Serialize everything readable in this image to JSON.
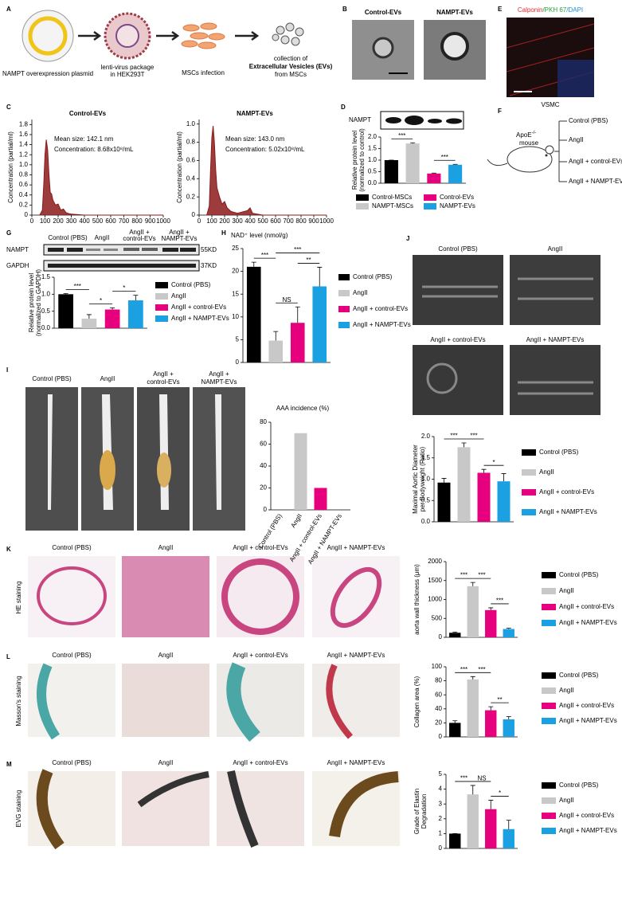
{
  "panels": {
    "a": {
      "label": "A",
      "plasmid": "NAMPT overexpression plasmid",
      "lentivirus": [
        "lenti-virus package",
        "in HEK293T"
      ],
      "infection": "MSCs infection",
      "collection": [
        "collection of",
        "Extracellular Vesicles (EVs)",
        "from MSCs"
      ]
    },
    "b": {
      "label": "B",
      "images": [
        "Control-EVs",
        "NAMPT-EVs"
      ]
    },
    "c": {
      "label": "C"
    },
    "d": {
      "label": "D",
      "blot": "NAMPT"
    },
    "e": {
      "label": "E",
      "stains": [
        {
          "text": "Calponin",
          "color": "#e8262b"
        },
        {
          "text": "/PKH 67",
          "color": "#22a33a"
        },
        {
          "text": "/DAPI",
          "color": "#1f8fd6"
        }
      ],
      "caption": "VSMC"
    },
    "f": {
      "label": "F",
      "mouse": "ApoE",
      "genotype": "-/-",
      "mouse_word": "mouse",
      "groups": [
        "Control (PBS)",
        "AngII",
        "AngII + control-EVs",
        "AngII + NAMPT-EVs"
      ]
    },
    "g": {
      "label": "G",
      "lanes": [
        "Control (PBS)",
        "AngII",
        [
          "AngII +",
          "control-EVs"
        ],
        [
          "AngII +",
          "NAMPT-EVs"
        ]
      ],
      "rows": [
        {
          "name": "NAMPT",
          "size": "55KD"
        },
        {
          "name": "GAPDH",
          "size": "37KD"
        }
      ]
    },
    "h": {
      "label": "H"
    },
    "i": {
      "label": "I",
      "photos": [
        "Control (PBS)",
        "AngII",
        [
          "AngII +",
          "control-EVs"
        ],
        [
          "AngII +",
          "NAMPT-EVs"
        ]
      ]
    },
    "j": {
      "label": "J",
      "images": [
        "Control (PBS)",
        "AngII",
        "AngII + control-EVs",
        "AngII + NAMPT-EVs"
      ]
    },
    "k": {
      "label": "K",
      "stain": "HE staining",
      "images": [
        "Control (PBS)",
        "AngII",
        "AngII + control-EVs",
        "AngII + NAMPT-EVs"
      ]
    },
    "l": {
      "label": "L",
      "stain": "Masson's staining",
      "images": [
        "Control (PBS)",
        "AngII",
        "AngII + control-EVs",
        "AngII + NAMPT-EVs"
      ]
    },
    "m": {
      "label": "M",
      "stain": "EVG staining",
      "images": [
        "Control (PBS)",
        "AngII",
        "AngII + control-EVs",
        "AngII + NAMPT-EVs"
      ]
    }
  },
  "chart_data": [
    {
      "type": "line",
      "title": "Control-EVs",
      "notes": [
        "Mean size: 142.1 nm",
        "Concentration:  8.68x10⁸/mL"
      ],
      "ylabel": "Concentration (partial/ml)",
      "color": "#8b1a1a",
      "x": [
        60,
        80,
        90,
        100,
        110,
        120,
        130,
        140,
        150,
        160,
        170,
        180,
        200,
        220,
        240,
        260,
        280,
        300,
        350,
        400,
        1000
      ],
      "values": [
        0,
        0.1,
        0.6,
        1.2,
        1.5,
        1.3,
        0.8,
        0.45,
        0.42,
        0.3,
        0.25,
        0.2,
        0.22,
        0.1,
        0.12,
        0.05,
        0.03,
        0.02,
        0.01,
        0,
        0
      ],
      "xlim": [
        0,
        1000
      ],
      "xticks": [
        0,
        100,
        200,
        300,
        400,
        500,
        600,
        700,
        800,
        900,
        1000
      ],
      "ylim": [
        0,
        1.9
      ],
      "yticks": [
        0,
        0.2,
        0.4,
        0.6,
        0.8,
        {
          "value": 1,
          "label": "1.0"
        },
        1.2,
        1.4,
        1.6,
        1.8
      ]
    },
    {
      "type": "line",
      "title": "NAMPT-EVs",
      "notes": [
        "Mean size: 143.0 nm",
        "Concentration:  5.02x10⁸/mL"
      ],
      "ylabel": "Concentration (partial/ml)",
      "color": "#8b1a1a",
      "x": [
        60,
        80,
        90,
        100,
        110,
        120,
        130,
        140,
        150,
        160,
        180,
        200,
        220,
        250,
        300,
        380,
        400,
        420,
        500,
        1000
      ],
      "values": [
        0,
        0.1,
        0.5,
        0.85,
        0.98,
        0.8,
        0.5,
        0.3,
        0.25,
        0.2,
        0.12,
        0.15,
        0.08,
        0.04,
        0.02,
        0.05,
        0.08,
        0.02,
        0,
        0
      ],
      "xlim": [
        0,
        1000
      ],
      "xticks": [
        0,
        100,
        200,
        300,
        400,
        500,
        600,
        700,
        800,
        900,
        1000
      ],
      "ylim": [
        0,
        1.05
      ],
      "yticks": [
        0,
        0.2,
        0.4,
        0.6,
        0.8,
        {
          "value": 1,
          "label": "1.0"
        }
      ]
    },
    {
      "type": "bar",
      "ylabel": [
        "Relative protein level",
        "(normalized to control)"
      ],
      "legend": "bottom",
      "categories": [
        "Control-MSCs",
        "NAMPT-MSCs",
        "Control-EVs",
        "NAMPT-EVs"
      ],
      "values": [
        1.0,
        1.72,
        0.42,
        0.8
      ],
      "errors": [
        0,
        0.03,
        0.02,
        0.02
      ],
      "colors": [
        "#000000",
        "#c8c8c8",
        "#e6007e",
        "#1ba1e2"
      ],
      "ylim": [
        0,
        2
      ],
      "yticks": [
        {
          "value": 0,
          "label": "0.0"
        },
        0.5,
        {
          "value": 1,
          "label": "1.0"
        },
        1.5,
        {
          "value": 2,
          "label": "2.0"
        }
      ],
      "annotations": [
        {
          "label": "***",
          "between": [
            0,
            1
          ]
        },
        {
          "label": "***",
          "between": [
            2,
            3
          ]
        }
      ]
    },
    {
      "type": "bar",
      "ylabel": [
        "Relative protein level",
        "(normalized to GAPDH)"
      ],
      "legend": "right",
      "categories": [
        "Control (PBS)",
        "AngII",
        "AngII + control-EVs",
        "AngII + NAMPT-EVs"
      ],
      "values": [
        1.0,
        0.28,
        0.55,
        0.82
      ],
      "errors": [
        0.02,
        0.12,
        0.05,
        0.15
      ],
      "colors": [
        "#000000",
        "#c8c8c8",
        "#e6007e",
        "#1ba1e2"
      ],
      "ylim": [
        0,
        1.5
      ],
      "yticks": [
        {
          "value": 0,
          "label": "0.0"
        },
        0.5,
        {
          "value": 1,
          "label": "1.0"
        },
        1.5
      ],
      "annotations": [
        {
          "label": "***",
          "between": [
            0,
            1
          ]
        },
        {
          "label": "*",
          "between": [
            1,
            2
          ]
        },
        {
          "label": "*",
          "between": [
            2,
            3
          ]
        }
      ]
    },
    {
      "type": "bar",
      "title": "NAD⁺ level (nmol/g)",
      "legend": "right",
      "categories": [
        "Control (PBS)",
        "AngII",
        "AngII + control-EVs",
        "AngII + NAMPT-EVs"
      ],
      "values": [
        21,
        4.8,
        8.7,
        16.7
      ],
      "errors": [
        1,
        2,
        3.5,
        4.2
      ],
      "colors": [
        "#000000",
        "#c8c8c8",
        "#e6007e",
        "#1ba1e2"
      ],
      "ylim": [
        0,
        25
      ],
      "yticks": [
        0,
        5,
        10,
        15,
        20,
        25
      ],
      "annotations": [
        {
          "label": "***",
          "between": [
            0,
            1
          ]
        },
        {
          "label": "NS",
          "between": [
            1,
            2
          ]
        },
        {
          "label": "**",
          "between": [
            2,
            3
          ]
        },
        {
          "label": "***",
          "between": [
            1,
            3
          ]
        }
      ]
    },
    {
      "type": "bar",
      "title": "AAA incidence (%)",
      "categories": [
        "Control (PBS)",
        "AngII",
        "AngII + control-EVs",
        "AngII + NAMPT-EVs"
      ],
      "values": [
        0,
        70,
        20,
        0
      ],
      "colors": [
        "#000000",
        "#c8c8c8",
        "#e6007e",
        "#1ba1e2"
      ],
      "ylim": [
        0,
        80
      ],
      "yticks": [
        0,
        20,
        40,
        60,
        80
      ]
    },
    {
      "type": "bar",
      "ylabel": [
        "Maximal Aortic Diameter",
        "per Bodyweight (Ratio)"
      ],
      "legend": "right",
      "categories": [
        "Control (PBS)",
        "AngII",
        "AngII + control-EVs",
        "AngII + NAMPT-EVs"
      ],
      "values": [
        0.92,
        1.75,
        1.15,
        0.95
      ],
      "errors": [
        0.1,
        0.1,
        0.08,
        0.18
      ],
      "colors": [
        "#000000",
        "#c8c8c8",
        "#e6007e",
        "#1ba1e2"
      ],
      "ylim": [
        0,
        2
      ],
      "yticks": [
        {
          "value": 0,
          "label": "0.0"
        },
        0.5,
        {
          "value": 1,
          "label": "1.0"
        },
        1.5,
        {
          "value": 2,
          "label": "2.0"
        }
      ],
      "annotations": [
        {
          "label": "***",
          "between": [
            0,
            1
          ]
        },
        {
          "label": "***",
          "between": [
            1,
            2
          ]
        },
        {
          "label": "*",
          "between": [
            2,
            3
          ]
        }
      ]
    },
    {
      "type": "bar",
      "ylabel": "aorta wall thickness (μm)",
      "legend": "right",
      "categories": [
        "Control (PBS)",
        "AngII",
        "AngII + control-EVs",
        "AngII + NAMPT-EVs"
      ],
      "values": [
        120,
        1350,
        720,
        220
      ],
      "errors": [
        20,
        100,
        60,
        20
      ],
      "colors": [
        "#000000",
        "#c8c8c8",
        "#e6007e",
        "#1ba1e2"
      ],
      "ylim": [
        0,
        2000
      ],
      "yticks": [
        0,
        500,
        1000,
        1500,
        2000
      ],
      "annotations": [
        {
          "label": "***",
          "between": [
            0,
            1
          ]
        },
        {
          "label": "***",
          "between": [
            1,
            2
          ]
        },
        {
          "label": "***",
          "between": [
            2,
            3
          ]
        }
      ]
    },
    {
      "type": "bar",
      "ylabel": "Collagen area (%)",
      "legend": "right",
      "categories": [
        "Control (PBS)",
        "AngII",
        "AngII + control-EVs",
        "AngII + NAMPT-EVs"
      ],
      "values": [
        20,
        82,
        38,
        25
      ],
      "errors": [
        3,
        4,
        5,
        4
      ],
      "colors": [
        "#000000",
        "#c8c8c8",
        "#e6007e",
        "#1ba1e2"
      ],
      "ylim": [
        0,
        100
      ],
      "yticks": [
        0,
        20,
        40,
        60,
        80,
        100
      ],
      "annotations": [
        {
          "label": "***",
          "between": [
            0,
            1
          ]
        },
        {
          "label": "***",
          "between": [
            1,
            2
          ]
        },
        {
          "label": "**",
          "between": [
            2,
            3
          ]
        }
      ]
    },
    {
      "type": "bar",
      "ylabel": [
        "Grade of Elastin",
        "Degradation"
      ],
      "legend": "right",
      "categories": [
        "Control (PBS)",
        "AngII",
        "AngII + control-EVs",
        "AngII + NAMPT-EVs"
      ],
      "values": [
        1,
        3.65,
        2.65,
        1.3
      ],
      "errors": [
        0,
        0.6,
        0.6,
        0.6
      ],
      "colors": [
        "#000000",
        "#c8c8c8",
        "#e6007e",
        "#1ba1e2"
      ],
      "ylim": [
        0,
        5
      ],
      "yticks": [
        0,
        1,
        2,
        3,
        4,
        5
      ],
      "annotations": [
        {
          "label": "***",
          "between": [
            0,
            1
          ]
        },
        {
          "label": "NS",
          "between": [
            1,
            2
          ]
        },
        {
          "label": "*",
          "between": [
            2,
            3
          ]
        }
      ]
    }
  ]
}
